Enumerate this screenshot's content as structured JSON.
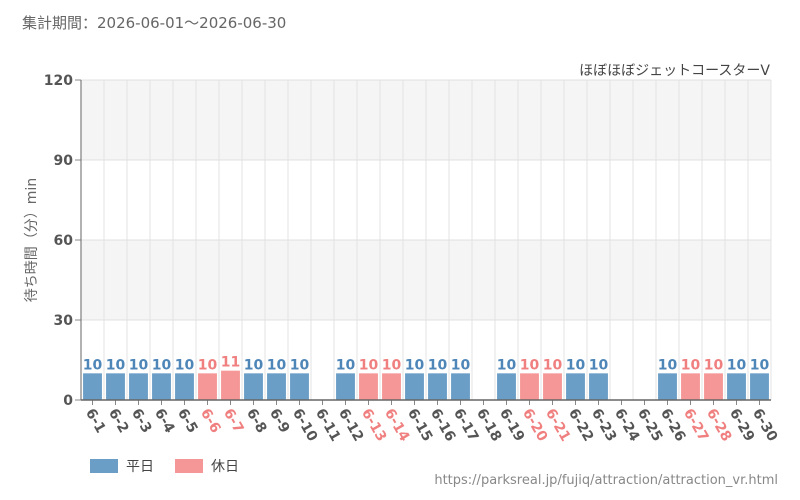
{
  "period_text": "集計期間：2026-06-01～2026-06-30",
  "source_url": "https://parksreal.jp/fujiq/attraction/attraction_vr.html",
  "colors": {
    "weekday": "#6a9ec7",
    "holiday": "#f59797",
    "weekday_label": "#4f86b8",
    "holiday_label": "#f08080"
  },
  "legend": [
    {
      "label": "平日",
      "color": "#6a9ec7"
    },
    {
      "label": "休日",
      "color": "#f59797"
    }
  ],
  "chart_data": {
    "type": "bar",
    "title": "ほぼほぼジェットコースターV",
    "ylabel": "待ち時間（分）min",
    "ylim": [
      0,
      120
    ],
    "yticks": [
      0,
      30,
      60,
      90,
      120
    ],
    "grid": true,
    "categories": [
      "6-1",
      "6-2",
      "6-3",
      "6-4",
      "6-5",
      "6-6",
      "6-7",
      "6-8",
      "6-9",
      "6-10",
      "6-11",
      "6-12",
      "6-13",
      "6-14",
      "6-15",
      "6-16",
      "6-17",
      "6-18",
      "6-19",
      "6-20",
      "6-21",
      "6-22",
      "6-23",
      "6-24",
      "6-25",
      "6-26",
      "6-27",
      "6-28",
      "6-29",
      "6-30"
    ],
    "values": [
      10,
      10,
      10,
      10,
      10,
      10,
      11,
      10,
      10,
      10,
      null,
      10,
      10,
      10,
      10,
      10,
      10,
      null,
      10,
      10,
      10,
      10,
      10,
      null,
      null,
      10,
      10,
      10,
      10,
      10
    ],
    "day_type": [
      "weekday",
      "weekday",
      "weekday",
      "weekday",
      "weekday",
      "holiday",
      "holiday",
      "weekday",
      "weekday",
      "weekday",
      "weekday",
      "weekday",
      "holiday",
      "holiday",
      "weekday",
      "weekday",
      "weekday",
      "weekday",
      "weekday",
      "holiday",
      "holiday",
      "weekday",
      "weekday",
      "weekday",
      "weekday",
      "weekday",
      "holiday",
      "holiday",
      "weekday",
      "weekday"
    ]
  }
}
